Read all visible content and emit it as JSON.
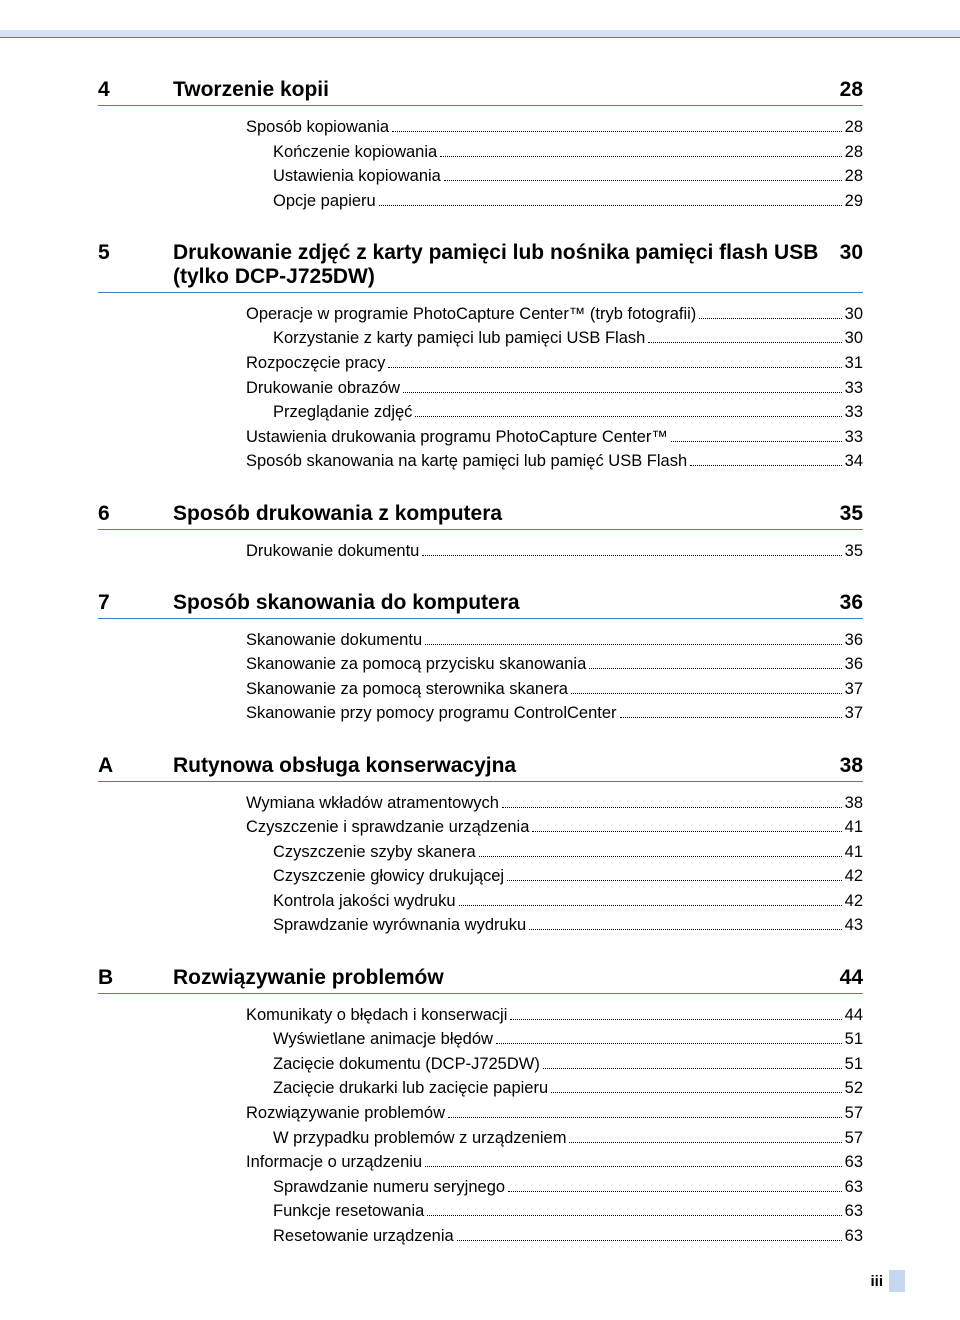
{
  "colors": {
    "top_bar_bg": "#d5e3f5",
    "rule": "#4a7ebb",
    "footer_bar": "#c5d8ef",
    "text": "#000000",
    "page_bg": "#ffffff"
  },
  "typography": {
    "body_fontsize": 16.5,
    "heading_fontsize": 21,
    "footer_fontsize": 15,
    "font_family": "Arial"
  },
  "sections": [
    {
      "num": "4",
      "title": "Tworzenie kopii",
      "page": "28",
      "entries": [
        {
          "indent": 0,
          "label": "Sposób kopiowania",
          "page": "28"
        },
        {
          "indent": 1,
          "label": "Kończenie kopiowania",
          "page": "28"
        },
        {
          "indent": 1,
          "label": "Ustawienia kopiowania",
          "page": "28"
        },
        {
          "indent": 1,
          "label": "Opcje papieru",
          "page": "29"
        }
      ]
    },
    {
      "num": "5",
      "title": "Drukowanie zdjęć z karty pamięci lub nośnika pamięci flash USB (tylko DCP-J725DW)",
      "page": "30",
      "entries": [
        {
          "indent": 0,
          "label": "Operacje w programie PhotoCapture Center™ (tryb fotografii)",
          "page": "30"
        },
        {
          "indent": 1,
          "label": "Korzystanie z karty pamięci lub pamięci USB Flash",
          "page": "30"
        },
        {
          "indent": 0,
          "label": "Rozpoczęcie pracy",
          "page": "31"
        },
        {
          "indent": 0,
          "label": "Drukowanie obrazów",
          "page": "33"
        },
        {
          "indent": 1,
          "label": "Przeglądanie zdjęć",
          "page": "33"
        },
        {
          "indent": 0,
          "label": "Ustawienia drukowania programu PhotoCapture Center™",
          "page": "33"
        },
        {
          "indent": 0,
          "label": "Sposób skanowania na kartę pamięci lub pamięć USB Flash",
          "page": "34"
        }
      ]
    },
    {
      "num": "6",
      "title": "Sposób drukowania z komputera",
      "page": "35",
      "entries": [
        {
          "indent": 0,
          "label": "Drukowanie dokumentu",
          "page": "35"
        }
      ]
    },
    {
      "num": "7",
      "title": "Sposób skanowania do komputera",
      "page": "36",
      "entries": [
        {
          "indent": 0,
          "label": "Skanowanie dokumentu",
          "page": "36"
        },
        {
          "indent": 0,
          "label": "Skanowanie za pomocą przycisku skanowania",
          "page": "36"
        },
        {
          "indent": 0,
          "label": "Skanowanie za pomocą sterownika skanera",
          "page": "37"
        },
        {
          "indent": 0,
          "label": "Skanowanie przy pomocy programu ControlCenter",
          "page": "37"
        }
      ]
    },
    {
      "num": "A",
      "title": "Rutynowa obsługa konserwacyjna",
      "page": "38",
      "entries": [
        {
          "indent": 0,
          "label": "Wymiana wkładów atramentowych",
          "page": "38"
        },
        {
          "indent": 0,
          "label": "Czyszczenie i sprawdzanie urządzenia",
          "page": "41"
        },
        {
          "indent": 1,
          "label": "Czyszczenie szyby skanera",
          "page": "41"
        },
        {
          "indent": 1,
          "label": "Czyszczenie głowicy drukującej",
          "page": "42"
        },
        {
          "indent": 1,
          "label": "Kontrola jakości wydruku",
          "page": "42"
        },
        {
          "indent": 1,
          "label": "Sprawdzanie wyrównania wydruku",
          "page": "43"
        }
      ]
    },
    {
      "num": "B",
      "title": "Rozwiązywanie problemów",
      "page": "44",
      "entries": [
        {
          "indent": 0,
          "label": "Komunikaty o błędach i konserwacji",
          "page": "44"
        },
        {
          "indent": 1,
          "label": "Wyświetlane animacje błędów",
          "page": "51"
        },
        {
          "indent": 1,
          "label": "Zacięcie dokumentu (DCP-J725DW)",
          "page": "51"
        },
        {
          "indent": 1,
          "label": "Zacięcie drukarki lub zacięcie papieru",
          "page": "52"
        },
        {
          "indent": 0,
          "label": "Rozwiązywanie problemów ",
          "page": "57"
        },
        {
          "indent": 1,
          "label": "W przypadku problemów z urządzeniem",
          "page": "57"
        },
        {
          "indent": 0,
          "label": "Informacje o urządzeniu",
          "page": "63"
        },
        {
          "indent": 1,
          "label": "Sprawdzanie numeru seryjnego",
          "page": "63"
        },
        {
          "indent": 1,
          "label": "Funkcje resetowania",
          "page": "63"
        },
        {
          "indent": 1,
          "label": "Resetowanie urządzenia",
          "page": "63"
        }
      ]
    }
  ],
  "footer": {
    "page_number": "iii"
  }
}
